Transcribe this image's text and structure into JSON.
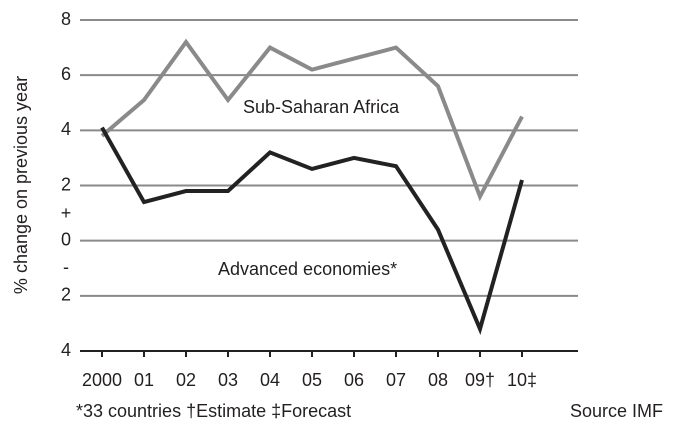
{
  "chart_data": {
    "type": "line",
    "ylabel": "% change on previous year",
    "categories": [
      "2000",
      "01",
      "02",
      "03",
      "04",
      "05",
      "06",
      "07",
      "08",
      "09†",
      "10‡"
    ],
    "series": [
      {
        "name": "Sub-Saharan Africa",
        "color": "#8a8a8a",
        "values": [
          3.8,
          5.1,
          7.2,
          5.1,
          7.0,
          6.2,
          6.6,
          7.0,
          5.6,
          1.6,
          4.5
        ]
      },
      {
        "name": "Advanced economies*",
        "color": "#222222",
        "values": [
          4.1,
          1.4,
          1.8,
          1.8,
          3.2,
          2.6,
          3.0,
          2.7,
          0.4,
          -3.2,
          2.2
        ]
      }
    ],
    "ylim": [
      -4,
      8
    ],
    "yticks": [
      8,
      6,
      4,
      2,
      0,
      {
        "value": -2,
        "label": "2"
      },
      {
        "value": -4,
        "label": "4"
      }
    ],
    "grid": true,
    "annotations": [
      "+",
      "-"
    ],
    "footnote": "*33 countries  †Estimate  ‡Forecast",
    "source": "Source IMF"
  }
}
